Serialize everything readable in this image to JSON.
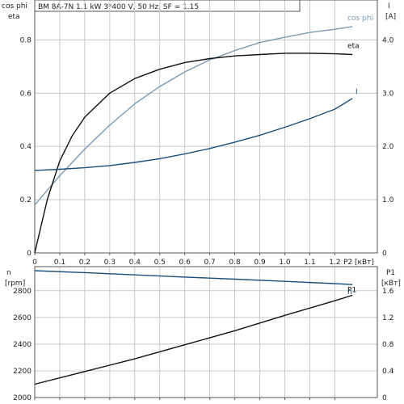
{
  "title": "BM 8A-7N   1.1 kW   3*400 V, 50 Hz, SF = 1.15",
  "colors": {
    "grid": "#c8c8c8",
    "axis": "#555555",
    "eta": "#111111",
    "cosphi": "#7a9ab5",
    "current": "#1b4f7a",
    "speed": "#1b4f7a",
    "power": "#111111"
  },
  "chart_data": [
    {
      "type": "line",
      "panel": "top",
      "ylabel_left_1": "cos phi",
      "ylabel_left_2": "eta",
      "ylabel_right_1": "I",
      "ylabel_right_2": "[A]",
      "xlabel": "P2 [кВт]",
      "xlim": [
        0,
        1.37
      ],
      "ylim": [
        0,
        0.95
      ],
      "ylim_right": [
        0,
        4.75
      ],
      "x_ticks": [
        "0",
        "0.1",
        "0.2",
        "0.3",
        "0.4",
        "0.5",
        "0.6",
        "0.7",
        "0.8",
        "0.9",
        "1.0",
        "1.1",
        "1.2"
      ],
      "y_ticks": [
        "0",
        "0.2",
        "0.4",
        "0.6",
        "0.8"
      ],
      "y_ticks_right": [
        "0",
        "1.0",
        "2.0",
        "3.0",
        "4.0"
      ],
      "grid": true,
      "series": [
        {
          "name": "cos phi",
          "axis": "left",
          "x": [
            0,
            0.1,
            0.2,
            0.3,
            0.4,
            0.5,
            0.6,
            0.7,
            0.8,
            0.9,
            1.0,
            1.1,
            1.2,
            1.27
          ],
          "y": [
            0.18,
            0.29,
            0.39,
            0.48,
            0.56,
            0.625,
            0.68,
            0.725,
            0.76,
            0.79,
            0.81,
            0.828,
            0.84,
            0.85
          ]
        },
        {
          "name": "eta",
          "axis": "left",
          "x": [
            0,
            0.05,
            0.1,
            0.15,
            0.2,
            0.3,
            0.4,
            0.5,
            0.6,
            0.7,
            0.8,
            0.9,
            1.0,
            1.1,
            1.2,
            1.27
          ],
          "y": [
            0,
            0.2,
            0.345,
            0.44,
            0.51,
            0.6,
            0.655,
            0.69,
            0.715,
            0.73,
            0.74,
            0.745,
            0.75,
            0.75,
            0.748,
            0.745
          ]
        },
        {
          "name": "I",
          "axis": "right",
          "x": [
            0,
            0.1,
            0.2,
            0.3,
            0.4,
            0.5,
            0.6,
            0.7,
            0.8,
            0.9,
            1.0,
            1.1,
            1.2,
            1.27
          ],
          "y": [
            1.55,
            1.57,
            1.6,
            1.64,
            1.7,
            1.77,
            1.86,
            1.96,
            2.08,
            2.21,
            2.36,
            2.52,
            2.7,
            2.9
          ]
        }
      ]
    },
    {
      "type": "line",
      "panel": "bottom",
      "ylabel_left_1": "n",
      "ylabel_left_2": "[rpm]",
      "ylabel_right_1": "P1",
      "ylabel_right_2": "[кВт]",
      "xlim": [
        0,
        1.37
      ],
      "ylim": [
        2000,
        2980
      ],
      "ylim_right": [
        0,
        1.96
      ],
      "y_ticks": [
        "2000",
        "2200",
        "2400",
        "2600",
        "2800"
      ],
      "y_ticks_right": [
        "0",
        "0.4",
        "0.8",
        "1.2",
        "1.6"
      ],
      "grid": true,
      "series": [
        {
          "name": "n",
          "axis": "left",
          "x": [
            0,
            0.2,
            0.4,
            0.6,
            0.8,
            1.0,
            1.2,
            1.27
          ],
          "y": [
            2950,
            2935,
            2918,
            2902,
            2886,
            2870,
            2853,
            2846
          ]
        },
        {
          "name": "P1",
          "axis": "right",
          "x": [
            0,
            0.2,
            0.4,
            0.6,
            0.8,
            1.0,
            1.2,
            1.27
          ],
          "y": [
            0.2,
            0.39,
            0.58,
            0.79,
            1.0,
            1.23,
            1.45,
            1.53
          ]
        }
      ]
    }
  ]
}
